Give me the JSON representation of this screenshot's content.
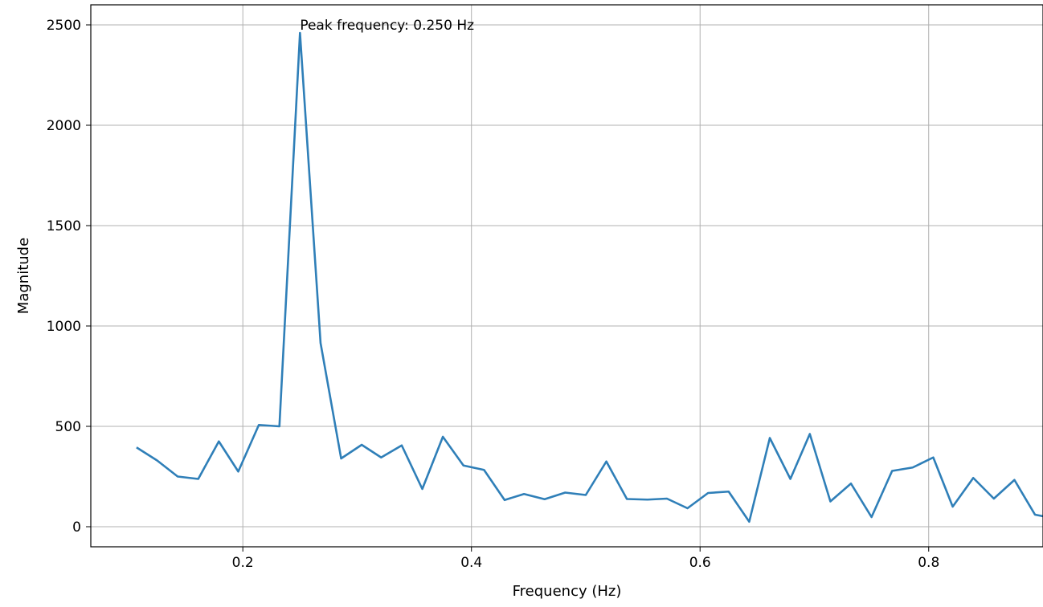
{
  "colors": {
    "series": "#2f7fb8",
    "grid": "#b0b0b0",
    "axis": "#000000",
    "background": "#ffffff"
  },
  "chart_data": {
    "type": "line",
    "title": "",
    "xlabel": "Frequency (Hz)",
    "ylabel": "Magnitude",
    "xlim": [
      0.067,
      0.9
    ],
    "ylim": [
      -100,
      2600
    ],
    "grid": true,
    "xticks": [
      {
        "value": 0.2,
        "label": "0.2"
      },
      {
        "value": 0.4,
        "label": "0.4"
      },
      {
        "value": 0.6,
        "label": "0.6"
      },
      {
        "value": 0.8,
        "label": "0.8"
      }
    ],
    "yticks": [
      {
        "value": 0,
        "label": "0"
      },
      {
        "value": 500,
        "label": "500"
      },
      {
        "value": 1000,
        "label": "1000"
      },
      {
        "value": 1500,
        "label": "1500"
      },
      {
        "value": 2000,
        "label": "2000"
      },
      {
        "value": 2500,
        "label": "2500"
      }
    ],
    "series": [
      {
        "x": [
          0.107,
          0.125,
          0.143,
          0.161,
          0.179,
          0.196,
          0.214,
          0.232,
          0.25,
          0.268,
          0.286,
          0.304,
          0.321,
          0.339,
          0.357,
          0.375,
          0.393,
          0.411,
          0.429,
          0.446,
          0.464,
          0.482,
          0.5,
          0.518,
          0.536,
          0.554,
          0.571,
          0.589,
          0.607,
          0.625,
          0.643,
          0.661,
          0.679,
          0.696,
          0.714,
          0.732,
          0.75,
          0.768,
          0.786,
          0.804,
          0.821,
          0.839,
          0.857,
          0.875,
          0.893,
          0.911
        ],
        "values": [
          395,
          330,
          250,
          238,
          425,
          275,
          507,
          500,
          2460,
          915,
          340,
          408,
          345,
          405,
          188,
          448,
          305,
          283,
          133,
          163,
          137,
          170,
          158,
          325,
          138,
          135,
          140,
          92,
          168,
          175,
          25,
          442,
          238,
          462,
          126,
          215,
          48,
          278,
          295,
          345,
          100,
          243,
          140,
          233,
          60,
          40
        ]
      }
    ],
    "annotations": [
      {
        "text": "Peak frequency: 0.250 Hz",
        "x": 0.25,
        "y": 2460
      }
    ]
  }
}
